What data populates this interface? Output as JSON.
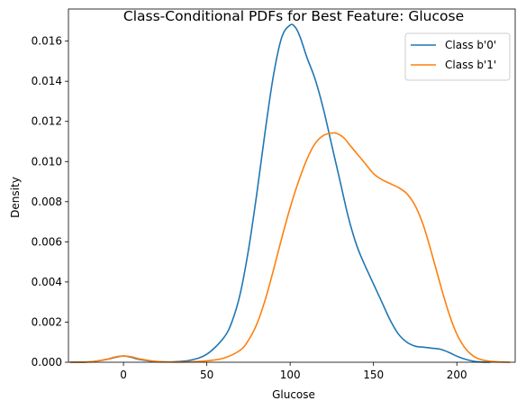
{
  "chart_data": {
    "type": "line",
    "title": "Class-Conditional PDFs for Best Feature: Glucose",
    "xlabel": "Glucose",
    "ylabel": "Density",
    "xlim": [
      -33,
      235
    ],
    "ylim": [
      0,
      0.0176
    ],
    "xticks": [
      0,
      50,
      100,
      150,
      200
    ],
    "xtick_labels": [
      "0",
      "50",
      "100",
      "150",
      "200"
    ],
    "yticks": [
      0,
      0.002,
      0.004,
      0.006,
      0.008,
      0.01,
      0.012,
      0.014,
      0.016
    ],
    "ytick_labels": [
      "0.000",
      "0.002",
      "0.004",
      "0.006",
      "0.008",
      "0.010",
      "0.012",
      "0.014",
      "0.016"
    ],
    "grid": false,
    "legend_position": "top-right",
    "series": [
      {
        "name": "Class b'0'",
        "color": "#1f77b4",
        "x": [
          -32,
          -20,
          -10,
          -5,
          0,
          5,
          10,
          20,
          30,
          40,
          50,
          60,
          65,
          70,
          75,
          80,
          85,
          90,
          95,
          100,
          103,
          106,
          110,
          115,
          120,
          125,
          130,
          135,
          140,
          145,
          150,
          155,
          160,
          165,
          170,
          175,
          180,
          185,
          190,
          195,
          200,
          205,
          210,
          215,
          220
        ],
        "y": [
          0.0,
          2e-05,
          0.00014,
          0.00024,
          0.00031,
          0.00024,
          0.00013,
          3e-05,
          2e-05,
          0.0001,
          0.0004,
          0.0012,
          0.002,
          0.0034,
          0.0056,
          0.0084,
          0.0115,
          0.0143,
          0.0162,
          0.0168,
          0.0167,
          0.0162,
          0.0152,
          0.0141,
          0.0126,
          0.0108,
          0.009,
          0.0072,
          0.0058,
          0.0048,
          0.0039,
          0.003,
          0.0021,
          0.0014,
          0.001,
          0.0008,
          0.00075,
          0.0007,
          0.00065,
          0.0005,
          0.0003,
          0.00015,
          5e-05,
          1e-05,
          0.0
        ]
      },
      {
        "name": "Class b'1'",
        "color": "#ff7f0e",
        "x": [
          -32,
          -20,
          -10,
          -5,
          0,
          5,
          10,
          20,
          30,
          40,
          50,
          60,
          70,
          75,
          80,
          85,
          90,
          95,
          100,
          105,
          110,
          115,
          120,
          125,
          128,
          132,
          136,
          140,
          145,
          150,
          155,
          160,
          165,
          170,
          175,
          180,
          185,
          190,
          195,
          200,
          205,
          210,
          215,
          222,
          232
        ],
        "y": [
          0.0,
          2e-05,
          0.00015,
          0.00026,
          0.00031,
          0.00027,
          0.00016,
          4e-05,
          1e-05,
          2e-05,
          7e-05,
          0.0002,
          0.0006,
          0.0011,
          0.0019,
          0.0031,
          0.0046,
          0.0062,
          0.0077,
          0.009,
          0.0101,
          0.0109,
          0.0113,
          0.01142,
          0.0114,
          0.0112,
          0.0108,
          0.0104,
          0.0099,
          0.0094,
          0.0091,
          0.0089,
          0.0087,
          0.0084,
          0.0078,
          0.0068,
          0.0054,
          0.0039,
          0.0025,
          0.0014,
          0.0007,
          0.0003,
          0.00012,
          3e-05,
          0.0
        ]
      }
    ]
  }
}
